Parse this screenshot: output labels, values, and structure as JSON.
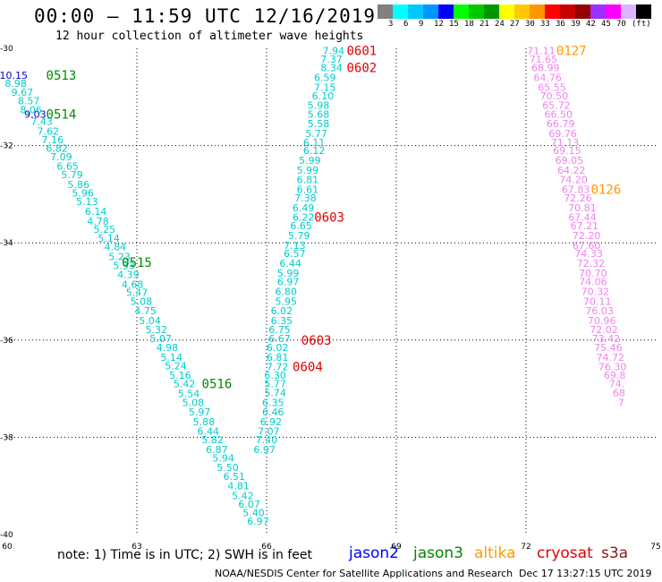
{
  "header": {
    "title": "00:00 – 11:59 UTC 12/16/2019",
    "subtitle": "12 hour collection of altimeter wave heights"
  },
  "colorbar": {
    "colors": [
      "#808080",
      "#00ffff",
      "#00c8ff",
      "#0096ff",
      "#0000ff",
      "#00ff00",
      "#00c800",
      "#009600",
      "#ffff00",
      "#ffc800",
      "#ff9600",
      "#ff0000",
      "#c80000",
      "#960000",
      "#9b30ff",
      "#ff00ff",
      "#dcb4ff",
      "#000000"
    ],
    "labels": [
      "3",
      "6",
      "9",
      "12",
      "15",
      "18",
      "21",
      "24",
      "27",
      "30",
      "33",
      "36",
      "39",
      "42",
      "45",
      "70",
      "(ft)"
    ]
  },
  "chart_data": {
    "type": "scatter",
    "xlim": [
      60,
      75
    ],
    "ylim": [
      -40,
      -30
    ],
    "x_ticks": [
      60,
      63,
      66,
      69,
      72,
      75
    ],
    "y_ticks": [
      -30,
      -32,
      -34,
      -36,
      -38,
      -40
    ],
    "grid": true,
    "series": [
      {
        "name": "jason2",
        "color": "#0000cc",
        "points": [
          {
            "x": 60.15,
            "y": -30.55,
            "label": "10.15"
          },
          {
            "x": 60.65,
            "y": -31.35,
            "label": "9.03"
          }
        ]
      },
      {
        "name": "pass",
        "color": "#00cccc",
        "points": [
          {
            "x": 60.2,
            "y": -30.72,
            "label": "8.98"
          },
          {
            "x": 60.35,
            "y": -30.9,
            "label": "9.67"
          },
          {
            "x": 60.5,
            "y": -31.08,
            "label": "8.57"
          },
          {
            "x": 60.55,
            "y": -31.26,
            "label": "8.06"
          },
          {
            "x": 60.8,
            "y": -31.5,
            "label": "7.43"
          },
          {
            "x": 60.95,
            "y": -31.7,
            "label": "7.62"
          },
          {
            "x": 61.05,
            "y": -31.88,
            "label": "7.16"
          },
          {
            "x": 61.15,
            "y": -32.05,
            "label": "6.82"
          },
          {
            "x": 61.25,
            "y": -32.23,
            "label": "7.09"
          },
          {
            "x": 61.4,
            "y": -32.42,
            "label": "6.65"
          },
          {
            "x": 61.5,
            "y": -32.6,
            "label": "5.79"
          },
          {
            "x": 61.65,
            "y": -32.8,
            "label": "5.86"
          },
          {
            "x": 61.75,
            "y": -32.97,
            "label": "5.96"
          },
          {
            "x": 61.85,
            "y": -33.15,
            "label": "5.13"
          },
          {
            "x": 62.05,
            "y": -33.35,
            "label": "6.14"
          },
          {
            "x": 62.1,
            "y": -33.55,
            "label": "4.78"
          },
          {
            "x": 62.25,
            "y": -33.72,
            "label": "5.25"
          },
          {
            "x": 62.35,
            "y": -33.9,
            "label": "5.14"
          },
          {
            "x": 62.5,
            "y": -34.08,
            "label": "4.84"
          },
          {
            "x": 62.6,
            "y": -34.28,
            "label": "5.23"
          },
          {
            "x": 62.7,
            "y": -34.47,
            "label": "5.33"
          },
          {
            "x": 62.8,
            "y": -34.65,
            "label": "4.39"
          },
          {
            "x": 62.9,
            "y": -34.85,
            "label": "4.68"
          },
          {
            "x": 63.0,
            "y": -35.02,
            "label": "5.47"
          },
          {
            "x": 63.1,
            "y": -35.2,
            "label": "5.08"
          },
          {
            "x": 63.2,
            "y": -35.4,
            "label": "4.75"
          },
          {
            "x": 63.3,
            "y": -35.6,
            "label": "5.04"
          },
          {
            "x": 63.45,
            "y": -35.78,
            "label": "5.32"
          },
          {
            "x": 63.55,
            "y": -35.97,
            "label": "5.07"
          },
          {
            "x": 63.7,
            "y": -36.15,
            "label": "4.98"
          },
          {
            "x": 63.8,
            "y": -36.35,
            "label": "5.14"
          },
          {
            "x": 63.9,
            "y": -36.53,
            "label": "5.24"
          },
          {
            "x": 64.0,
            "y": -36.72,
            "label": "5.16"
          },
          {
            "x": 64.1,
            "y": -36.9,
            "label": "5.42"
          },
          {
            "x": 64.2,
            "y": -37.1,
            "label": "5.54"
          },
          {
            "x": 64.3,
            "y": -37.28,
            "label": "5.08"
          },
          {
            "x": 64.45,
            "y": -37.48,
            "label": "5.97"
          },
          {
            "x": 64.55,
            "y": -37.68,
            "label": "5.88"
          },
          {
            "x": 64.65,
            "y": -37.87,
            "label": "6.44"
          },
          {
            "x": 64.75,
            "y": -38.05,
            "label": "5.82"
          },
          {
            "x": 64.85,
            "y": -38.25,
            "label": "6.87"
          },
          {
            "x": 65.0,
            "y": -38.43,
            "label": "5.94"
          },
          {
            "x": 65.1,
            "y": -38.62,
            "label": "5.50"
          },
          {
            "x": 65.25,
            "y": -38.8,
            "label": "6.51"
          },
          {
            "x": 65.35,
            "y": -39.0,
            "label": "4.81"
          },
          {
            "x": 65.45,
            "y": -39.2,
            "label": "5.42"
          },
          {
            "x": 65.6,
            "y": -39.37,
            "label": "6.07"
          },
          {
            "x": 65.7,
            "y": -39.55,
            "label": "5.40"
          },
          {
            "x": 65.8,
            "y": -39.72,
            "label": "6.97"
          },
          {
            "x": 67.55,
            "y": -30.05,
            "label": "7.94"
          },
          {
            "x": 67.5,
            "y": -30.22,
            "label": "7.37"
          },
          {
            "x": 67.5,
            "y": -30.4,
            "label": "8.34"
          },
          {
            "x": 67.35,
            "y": -30.6,
            "label": "6.59"
          },
          {
            "x": 67.35,
            "y": -30.8,
            "label": "7.15"
          },
          {
            "x": 67.3,
            "y": -30.98,
            "label": "6.10"
          },
          {
            "x": 67.2,
            "y": -31.17,
            "label": "5.98"
          },
          {
            "x": 67.2,
            "y": -31.35,
            "label": "5.68"
          },
          {
            "x": 67.2,
            "y": -31.55,
            "label": "5.58"
          },
          {
            "x": 67.15,
            "y": -31.75,
            "label": "5.77"
          },
          {
            "x": 67.1,
            "y": -31.93,
            "label": "6.11"
          },
          {
            "x": 67.1,
            "y": -32.1,
            "label": "6.12"
          },
          {
            "x": 67.0,
            "y": -32.3,
            "label": "5.99"
          },
          {
            "x": 66.95,
            "y": -32.5,
            "label": "5.99"
          },
          {
            "x": 66.95,
            "y": -32.7,
            "label": "6.81"
          },
          {
            "x": 66.95,
            "y": -32.9,
            "label": "6.61"
          },
          {
            "x": 66.9,
            "y": -33.08,
            "label": "7.38"
          },
          {
            "x": 66.85,
            "y": -33.28,
            "label": "6.49"
          },
          {
            "x": 66.85,
            "y": -33.47,
            "label": "6.22"
          },
          {
            "x": 66.8,
            "y": -33.65,
            "label": "6.65"
          },
          {
            "x": 66.75,
            "y": -33.85,
            "label": "5.79"
          },
          {
            "x": 66.65,
            "y": -34.05,
            "label": "7.13"
          },
          {
            "x": 66.65,
            "y": -34.22,
            "label": "6.57"
          },
          {
            "x": 66.55,
            "y": -34.42,
            "label": "6.44"
          },
          {
            "x": 66.5,
            "y": -34.62,
            "label": "5.99"
          },
          {
            "x": 66.5,
            "y": -34.8,
            "label": "6.97"
          },
          {
            "x": 66.45,
            "y": -35.0,
            "label": "6.80"
          },
          {
            "x": 66.45,
            "y": -35.2,
            "label": "5.95"
          },
          {
            "x": 66.35,
            "y": -35.4,
            "label": "6.02"
          },
          {
            "x": 66.35,
            "y": -35.6,
            "label": "6.35"
          },
          {
            "x": 66.3,
            "y": -35.78,
            "label": "6.75"
          },
          {
            "x": 66.3,
            "y": -35.97,
            "label": "6.67"
          },
          {
            "x": 66.25,
            "y": -36.15,
            "label": "6.02"
          },
          {
            "x": 66.25,
            "y": -36.35,
            "label": "6.81"
          },
          {
            "x": 66.25,
            "y": -36.55,
            "label": "7.72"
          },
          {
            "x": 66.2,
            "y": -36.72,
            "label": "6.30"
          },
          {
            "x": 66.2,
            "y": -36.9,
            "label": "5.77"
          },
          {
            "x": 66.2,
            "y": -37.08,
            "label": "5.74"
          },
          {
            "x": 66.15,
            "y": -37.28,
            "label": "6.35"
          },
          {
            "x": 66.15,
            "y": -37.48,
            "label": "6.46"
          },
          {
            "x": 66.1,
            "y": -37.68,
            "label": "6.92"
          },
          {
            "x": 66.05,
            "y": -37.87,
            "label": "7.07"
          },
          {
            "x": 66.0,
            "y": -38.05,
            "label": "7.40"
          },
          {
            "x": 65.95,
            "y": -38.25,
            "label": "6.97"
          }
        ]
      },
      {
        "name": "pass",
        "color": "#ee82ee",
        "points": [
          {
            "x": 72.35,
            "y": -30.05,
            "label": "71.11"
          },
          {
            "x": 72.4,
            "y": -30.22,
            "label": "71.65"
          },
          {
            "x": 72.45,
            "y": -30.4,
            "label": "68.99"
          },
          {
            "x": 72.5,
            "y": -30.6,
            "label": "64.76"
          },
          {
            "x": 72.6,
            "y": -30.8,
            "label": "65.55"
          },
          {
            "x": 72.65,
            "y": -30.98,
            "label": "70.50"
          },
          {
            "x": 72.7,
            "y": -31.17,
            "label": "65.72"
          },
          {
            "x": 72.75,
            "y": -31.35,
            "label": "66.50"
          },
          {
            "x": 72.8,
            "y": -31.55,
            "label": "66.79"
          },
          {
            "x": 72.85,
            "y": -31.75,
            "label": "69.76"
          },
          {
            "x": 72.9,
            "y": -31.93,
            "label": "71.13"
          },
          {
            "x": 72.95,
            "y": -32.1,
            "label": "69.15"
          },
          {
            "x": 73.0,
            "y": -32.3,
            "label": "69.05"
          },
          {
            "x": 73.05,
            "y": -32.5,
            "label": "64.22"
          },
          {
            "x": 73.1,
            "y": -32.7,
            "label": "74.20"
          },
          {
            "x": 73.15,
            "y": -32.9,
            "label": "67.83"
          },
          {
            "x": 73.2,
            "y": -33.08,
            "label": "72.26"
          },
          {
            "x": 73.3,
            "y": -33.28,
            "label": "70.81"
          },
          {
            "x": 73.3,
            "y": -33.47,
            "label": "67.44"
          },
          {
            "x": 73.35,
            "y": -33.65,
            "label": "67.21"
          },
          {
            "x": 73.4,
            "y": -33.85,
            "label": "72.20"
          },
          {
            "x": 73.4,
            "y": -34.05,
            "label": "67.60"
          },
          {
            "x": 73.45,
            "y": -34.22,
            "label": "74.33"
          },
          {
            "x": 73.5,
            "y": -34.42,
            "label": "72.32"
          },
          {
            "x": 73.55,
            "y": -34.62,
            "label": "70.70"
          },
          {
            "x": 73.55,
            "y": -34.8,
            "label": "74.06"
          },
          {
            "x": 73.6,
            "y": -35.0,
            "label": "70.32"
          },
          {
            "x": 73.65,
            "y": -35.2,
            "label": "70.11"
          },
          {
            "x": 73.7,
            "y": -35.4,
            "label": "76.03"
          },
          {
            "x": 73.75,
            "y": -35.6,
            "label": "70.96"
          },
          {
            "x": 73.8,
            "y": -35.78,
            "label": "72.02"
          },
          {
            "x": 73.85,
            "y": -35.97,
            "label": "73.42"
          },
          {
            "x": 73.9,
            "y": -36.15,
            "label": "75.46"
          },
          {
            "x": 73.95,
            "y": -36.35,
            "label": "74.72"
          },
          {
            "x": 74.0,
            "y": -36.55,
            "label": "76.30"
          },
          {
            "x": 74.05,
            "y": -36.72,
            "label": "69.8"
          },
          {
            "x": 74.1,
            "y": -36.9,
            "label": "74."
          },
          {
            "x": 74.15,
            "y": -37.08,
            "label": "68"
          },
          {
            "x": 74.2,
            "y": -37.28,
            "label": "7"
          }
        ]
      }
    ],
    "time_labels": [
      {
        "x": 61.25,
        "y": -30.55,
        "text": "0513",
        "color": "#008800"
      },
      {
        "x": 61.25,
        "y": -31.35,
        "text": "0514",
        "color": "#008800"
      },
      {
        "x": 63.0,
        "y": -34.4,
        "text": "0515",
        "color": "#008800"
      },
      {
        "x": 64.85,
        "y": -36.9,
        "text": "0516",
        "color": "#008800"
      },
      {
        "x": 68.2,
        "y": -30.05,
        "text": "0601",
        "color": "#dd0000"
      },
      {
        "x": 68.2,
        "y": -30.4,
        "text": "0602",
        "color": "#dd0000"
      },
      {
        "x": 67.45,
        "y": -33.47,
        "text": "0603",
        "color": "#dd0000"
      },
      {
        "x": 67.15,
        "y": -36.0,
        "text": "0603",
        "color": "#dd0000"
      },
      {
        "x": 66.95,
        "y": -36.55,
        "text": "0604",
        "color": "#dd0000"
      },
      {
        "x": 73.05,
        "y": -30.05,
        "text": "0127",
        "color": "#ff9900"
      },
      {
        "x": 73.85,
        "y": -32.9,
        "text": "0126",
        "color": "#ff9900"
      }
    ]
  },
  "footer": {
    "note": "note: 1) Time is in UTC; 2) SWH is in feet",
    "missions": [
      {
        "name": "jason2",
        "color": "#0000ff"
      },
      {
        "name": "jason3",
        "color": "#008800"
      },
      {
        "name": "altika",
        "color": "#ff9900"
      },
      {
        "name": "cryosat",
        "color": "#dd0000"
      },
      {
        "name": "s3a",
        "color": "#8b1a1a"
      }
    ],
    "credit": "NOAA/NESDIS Center for Satellite Applications and Research",
    "timestamp": "Dec 17 13:27:15 UTC 2019"
  }
}
